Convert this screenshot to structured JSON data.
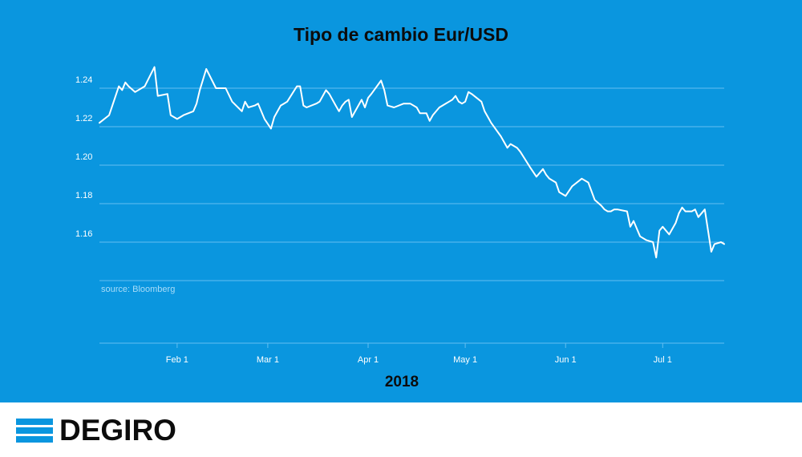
{
  "chart_data": {
    "type": "line",
    "title": "Tipo de cambio Eur/USD",
    "xlabel": "2018",
    "ylabel": "",
    "source_note": "source: Bloomberg",
    "x_start": "2018-01-08",
    "x_end": "2018-07-20",
    "ylim": [
      1.14,
      1.26
    ],
    "yticks": [
      {
        "value": 1.16,
        "label": "1.16"
      },
      {
        "value": 1.18,
        "label": "1.18"
      },
      {
        "value": 1.2,
        "label": "1.20"
      },
      {
        "value": 1.22,
        "label": "1.22"
      },
      {
        "value": 1.24,
        "label": "1.24"
      }
    ],
    "xticks": [
      {
        "date": "2018-02-01",
        "label": "Feb 1"
      },
      {
        "date": "2018-03-01",
        "label": "Mar 1"
      },
      {
        "date": "2018-04-01",
        "label": "Apr 1"
      },
      {
        "date": "2018-05-01",
        "label": "May 1"
      },
      {
        "date": "2018-06-01",
        "label": "Jun 1"
      },
      {
        "date": "2018-07-01",
        "label": "Jul 1"
      }
    ],
    "grid": true,
    "series": [
      {
        "x": [
          "2018-01-08",
          "2018-01-11",
          "2018-01-14",
          "2018-01-15",
          "2018-01-16",
          "2018-01-17",
          "2018-01-19",
          "2018-01-22",
          "2018-01-25",
          "2018-01-26",
          "2018-01-29",
          "2018-01-30",
          "2018-02-01",
          "2018-02-03",
          "2018-02-06",
          "2018-02-07",
          "2018-02-08",
          "2018-02-10",
          "2018-02-13",
          "2018-02-16",
          "2018-02-18",
          "2018-02-21",
          "2018-02-22",
          "2018-02-23",
          "2018-02-25",
          "2018-02-26",
          "2018-02-28",
          "2018-03-02",
          "2018-03-03",
          "2018-03-05",
          "2018-03-06",
          "2018-03-07",
          "2018-03-10",
          "2018-03-11",
          "2018-03-12",
          "2018-03-13",
          "2018-03-16",
          "2018-03-17",
          "2018-03-19",
          "2018-03-20",
          "2018-03-22",
          "2018-03-23",
          "2018-03-24",
          "2018-03-25",
          "2018-03-26",
          "2018-03-27",
          "2018-03-30",
          "2018-03-31",
          "2018-04-01",
          "2018-04-02",
          "2018-04-05",
          "2018-04-06",
          "2018-04-07",
          "2018-04-09",
          "2018-04-12",
          "2018-04-14",
          "2018-04-16",
          "2018-04-17",
          "2018-04-19",
          "2018-04-20",
          "2018-04-21",
          "2018-04-23",
          "2018-04-24",
          "2018-04-26",
          "2018-04-27",
          "2018-04-28",
          "2018-04-29",
          "2018-04-30",
          "2018-05-01",
          "2018-05-02",
          "2018-05-03",
          "2018-05-06",
          "2018-05-07",
          "2018-05-08",
          "2018-05-09",
          "2018-05-12",
          "2018-05-14",
          "2018-05-15",
          "2018-05-17",
          "2018-05-18",
          "2018-05-21",
          "2018-05-23",
          "2018-05-25",
          "2018-05-26",
          "2018-05-27",
          "2018-05-28",
          "2018-05-29",
          "2018-05-30",
          "2018-06-01",
          "2018-06-03",
          "2018-06-06",
          "2018-06-07",
          "2018-06-08",
          "2018-06-10",
          "2018-06-12",
          "2018-06-13",
          "2018-06-14",
          "2018-06-15",
          "2018-06-16",
          "2018-06-17",
          "2018-06-20",
          "2018-06-21",
          "2018-06-22",
          "2018-06-24",
          "2018-06-26",
          "2018-06-28",
          "2018-06-29",
          "2018-06-30",
          "2018-07-01",
          "2018-07-03",
          "2018-07-05",
          "2018-07-06",
          "2018-07-07",
          "2018-07-08",
          "2018-07-10",
          "2018-07-11",
          "2018-07-12",
          "2018-07-14",
          "2018-07-16",
          "2018-07-17",
          "2018-07-19",
          "2018-07-20"
        ],
        "y": [
          1.222,
          1.226,
          1.241,
          1.239,
          1.243,
          1.241,
          1.238,
          1.241,
          1.251,
          1.236,
          1.237,
          1.226,
          1.224,
          1.226,
          1.228,
          1.232,
          1.239,
          1.25,
          1.24,
          1.24,
          1.233,
          1.228,
          1.233,
          1.23,
          1.231,
          1.232,
          1.224,
          1.219,
          1.225,
          1.231,
          1.232,
          1.233,
          1.241,
          1.241,
          1.231,
          1.23,
          1.232,
          1.233,
          1.239,
          1.237,
          1.231,
          1.228,
          1.231,
          1.233,
          1.234,
          1.225,
          1.234,
          1.23,
          1.235,
          1.237,
          1.244,
          1.239,
          1.231,
          1.23,
          1.232,
          1.232,
          1.23,
          1.227,
          1.227,
          1.223,
          1.226,
          1.23,
          1.231,
          1.233,
          1.234,
          1.236,
          1.233,
          1.232,
          1.233,
          1.238,
          1.237,
          1.233,
          1.228,
          1.225,
          1.222,
          1.215,
          1.209,
          1.211,
          1.209,
          1.207,
          1.199,
          1.194,
          1.198,
          1.195,
          1.193,
          1.192,
          1.191,
          1.186,
          1.184,
          1.189,
          1.193,
          1.192,
          1.191,
          1.182,
          1.179,
          1.177,
          1.176,
          1.176,
          1.177,
          1.177,
          1.176,
          1.168,
          1.171,
          1.163,
          1.161,
          1.16,
          1.152,
          1.166,
          1.168,
          1.164,
          1.17,
          1.175,
          1.178,
          1.176,
          1.176,
          1.177,
          1.173,
          1.177,
          1.155,
          1.159,
          1.16,
          1.159
        ]
      }
    ]
  },
  "brand": {
    "name": "DEGIRO",
    "logo_color": "#0a96df"
  },
  "colors": {
    "background": "#0a96df",
    "line": "#ffffff",
    "grid": "#64bff0",
    "text": "#ffffff",
    "title": "#0c0c0c"
  }
}
